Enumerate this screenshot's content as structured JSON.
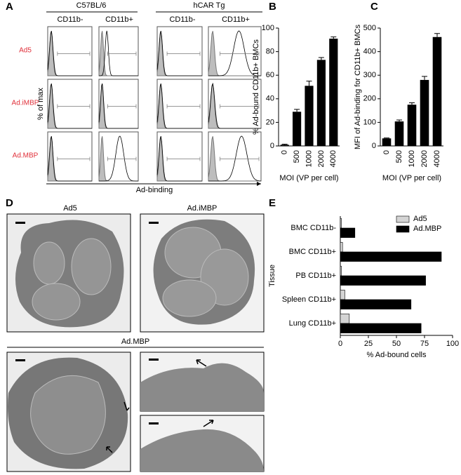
{
  "panel_labels": [
    "A",
    "B",
    "C",
    "D",
    "E"
  ],
  "flow": {
    "groups": [
      "C57BL/6",
      "hCAR Tg"
    ],
    "columns": [
      "CD11b-",
      "CD11b+",
      "CD11b-",
      "CD11b+"
    ],
    "rows": [
      "Ad5",
      "Ad.iMBP",
      "Ad.MBP"
    ],
    "ylabel": "% of max",
    "xlabel": "Ad-binding"
  },
  "micrographs": {
    "titles": [
      "Ad5",
      "Ad.iMBP",
      "Ad.MBP"
    ]
  },
  "chart_data": [
    {
      "type": "bar",
      "ylabel": "% Ad-bound CD11b+ BMCs",
      "xlabel": "MOI (VP per cell)",
      "categories": [
        "0",
        "500",
        "1000",
        "2000",
        "4000"
      ],
      "values": [
        1,
        29,
        51,
        73,
        91
      ],
      "errors": [
        0.5,
        2,
        4,
        2,
        1.5
      ],
      "color": "#000000",
      "ylim": [
        0,
        100
      ],
      "yticks": [
        0,
        20,
        40,
        60,
        80,
        100
      ]
    },
    {
      "type": "bar",
      "ylabel": "MFI of Ad-binding for CD11b+ BMCs",
      "xlabel": "MOI (VP per cell)",
      "categories": [
        "0",
        "500",
        "1000",
        "2000",
        "4000"
      ],
      "values": [
        32,
        104,
        175,
        280,
        462
      ],
      "errors": [
        2,
        6,
        8,
        15,
        15
      ],
      "color": "#000000",
      "ylim": [
        0,
        500
      ],
      "yticks": [
        0,
        100,
        200,
        300,
        400,
        500
      ]
    },
    {
      "type": "hbar",
      "ylabel": "Tissue",
      "xlabel": "% Ad-bound cells",
      "categories": [
        "BMC CD11b-",
        "BMC CD11b+",
        "PB CD11b+",
        "Spleen CD11b+",
        "Lung CD11b+"
      ],
      "series": [
        {
          "name": "Ad5",
          "color": "#d4d4d4",
          "values": [
            1,
            2,
            1,
            4,
            8
          ]
        },
        {
          "name": "Ad.MBP",
          "color": "#000000",
          "values": [
            13,
            90,
            76,
            63,
            72
          ]
        }
      ],
      "xlim": [
        0,
        100
      ],
      "xticks": [
        0,
        25,
        50,
        75,
        100
      ],
      "legend": "upper right"
    }
  ]
}
